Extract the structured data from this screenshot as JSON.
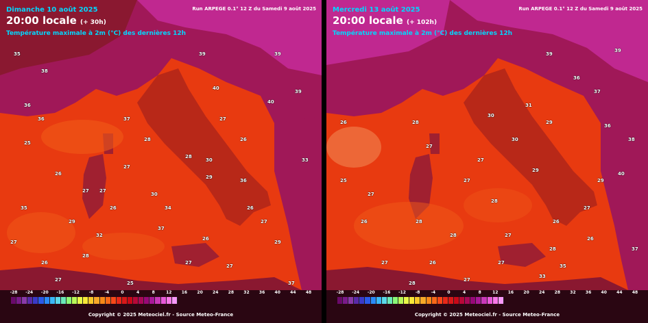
{
  "left_panel": {
    "date": "Dimanche 10 août 2025",
    "time": "20:00 locale",
    "lead": "(+ 30h)",
    "variable": "Température maximale à 2m (°C) des dernières 12h",
    "run": "Run ARPEGE 0.1° 12 Z du Samedi 9 août 2025",
    "labels": [
      "35",
      "39",
      "39",
      "38",
      "40",
      "39",
      "36",
      "37",
      "25",
      "26",
      "27",
      "28",
      "27",
      "27",
      "26",
      "29",
      "34",
      "36",
      "37",
      "30",
      "28",
      "27",
      "27",
      "25",
      "26",
      "27",
      "26",
      "29",
      "37",
      "35",
      "33",
      "28",
      "27",
      "26",
      "27",
      "27",
      "29",
      "26",
      "32",
      "30",
      "36",
      "40"
    ]
  },
  "right_panel": {
    "date": "Mercredi 13 août 2025",
    "time": "20:00 locale",
    "lead": "(+ 102h)",
    "variable": "Température maximale à 2m (°C) des dernières 12h",
    "run": "Run ARPEGE 0.1° 12 Z du Samedi 9 août 2025",
    "labels": [
      "39",
      "39",
      "36",
      "37",
      "38",
      "40",
      "28",
      "27",
      "26",
      "25",
      "27",
      "28",
      "28",
      "27",
      "26",
      "29",
      "30",
      "27",
      "26",
      "27",
      "28",
      "30",
      "29",
      "27",
      "27",
      "28",
      "27",
      "26",
      "33",
      "35",
      "29",
      "31",
      "36",
      "37",
      "27",
      "28",
      "26"
    ]
  },
  "legend": {
    "ticks": [
      "-28",
      "-24",
      "-20",
      "-16",
      "-12",
      "-8",
      "-4",
      "0",
      "4",
      "8",
      "12",
      "16",
      "20",
      "24",
      "28",
      "32",
      "36",
      "40",
      "44",
      "48"
    ],
    "colors": [
      "#6a0a6a",
      "#7a1a8a",
      "#8a3aa8",
      "#5a2aa8",
      "#3a3ac8",
      "#2a5ae8",
      "#2a8af8",
      "#3ab8f8",
      "#5ad8e8",
      "#6ae8b8",
      "#8af878",
      "#b8f858",
      "#e8f848",
      "#f8e838",
      "#f8c828",
      "#f8a828",
      "#f88818",
      "#f86818",
      "#f84818",
      "#e82818",
      "#d81818",
      "#c80818",
      "#b80838",
      "#a80858",
      "#980878",
      "#a81898",
      "#c838b8",
      "#e858d8",
      "#f878e8",
      "#f898f8"
    ],
    "copyright": "Copyright © 2025 Meteociel.fr - Source Meteo-France"
  },
  "map_colors": {
    "sea_warm": "#e83a10",
    "sea_cool": "#f05a18",
    "land_hot": "#a01858",
    "land_hotter": "#c02890",
    "land_mid": "#b82818"
  }
}
